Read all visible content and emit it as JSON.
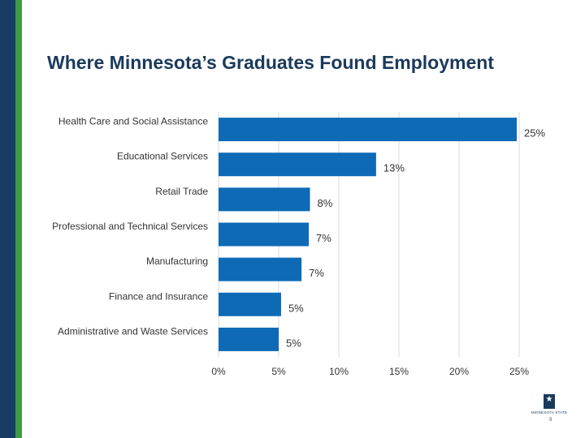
{
  "slide": {
    "title": "Where Minnesota’s Graduates Found Employment",
    "page_number": "9",
    "logo_text": "MINNESOTA STATE",
    "logo_icon": "star-icon"
  },
  "colors": {
    "bar": "#0e6ab5",
    "gridline": "#d9d9d9",
    "title": "#1a3a5c",
    "side_navy": "#173d63",
    "side_green": "#3f9a45"
  },
  "chart_data": {
    "type": "bar",
    "orientation": "horizontal",
    "title": "",
    "xlabel": "",
    "ylabel": "",
    "categories": [
      "Health Care and Social Assistance",
      "Educational Services",
      "Retail Trade",
      "Professional and Technical Services",
      "Manufacturing",
      "Finance and Insurance",
      "Administrative and Waste Services"
    ],
    "values": [
      24.8,
      13.1,
      7.6,
      7.5,
      6.9,
      5.2,
      5.0
    ],
    "data_labels": [
      "25%",
      "13%",
      "8%",
      "7%",
      "7%",
      "5%",
      "5%"
    ],
    "xlim": [
      0,
      25
    ],
    "x_ticks": [
      0,
      5,
      10,
      15,
      20,
      25
    ],
    "x_tick_labels": [
      "0%",
      "5%",
      "10%",
      "15%",
      "20%",
      "25%"
    ],
    "grid": true,
    "legend": "none"
  }
}
